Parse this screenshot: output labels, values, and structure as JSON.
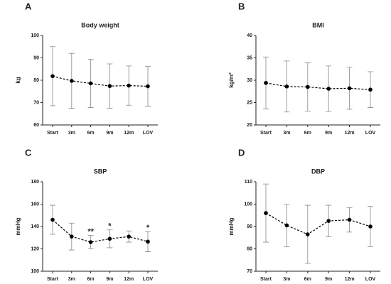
{
  "chart_data": [
    {
      "type": "line",
      "panel": "A",
      "title": "Body weight",
      "y_label": "kg",
      "categories": [
        "Start",
        "3m",
        "6m",
        "9m",
        "12m",
        "LOV"
      ],
      "values": [
        81.8,
        79.7,
        78.6,
        77.4,
        77.6,
        77.3
      ],
      "errors": [
        13.2,
        12.3,
        10.8,
        9.9,
        8.8,
        8.9
      ],
      "color": "#000000",
      "ylim": [
        60,
        100
      ],
      "yticks": [
        60,
        70,
        80,
        90,
        100
      ]
    },
    {
      "type": "line",
      "panel": "B",
      "title": "BMI",
      "y_label": "kg/m²",
      "categories": [
        "Start",
        "3m",
        "6m",
        "9m",
        "12m",
        "LOV"
      ],
      "values": [
        29.4,
        28.6,
        28.5,
        28.1,
        28.2,
        27.9
      ],
      "errors": [
        5.8,
        5.7,
        5.4,
        5.1,
        4.7,
        4.0
      ],
      "color": "#000000",
      "ylim": [
        20,
        40
      ],
      "yticks": [
        20,
        25,
        30,
        35,
        40
      ]
    },
    {
      "type": "line",
      "panel": "C",
      "title": "SBP",
      "y_label": "mmHg",
      "categories": [
        "Start",
        "3m",
        "6m",
        "9m",
        "12m",
        "LOV"
      ],
      "values": [
        146,
        131,
        126,
        129,
        131,
        126.5
      ],
      "errors": [
        13,
        12,
        6,
        8,
        5,
        9
      ],
      "significance": [
        null,
        null,
        "**",
        "*",
        null,
        "*"
      ],
      "color": "#000000",
      "ylim": [
        100,
        180
      ],
      "yticks": [
        100,
        120,
        140,
        160,
        180
      ]
    },
    {
      "type": "line",
      "panel": "D",
      "title": "DBP",
      "y_label": "mmHg",
      "categories": [
        "Start",
        "3m",
        "6m",
        "9m",
        "12m",
        "LOV"
      ],
      "values": [
        96,
        90.5,
        86.5,
        92.5,
        93,
        90
      ],
      "errors": [
        13,
        9.5,
        13,
        7,
        5.5,
        9
      ],
      "color": "#000000",
      "ylim": [
        70,
        110
      ],
      "yticks": [
        70,
        80,
        90,
        100,
        110
      ]
    }
  ]
}
